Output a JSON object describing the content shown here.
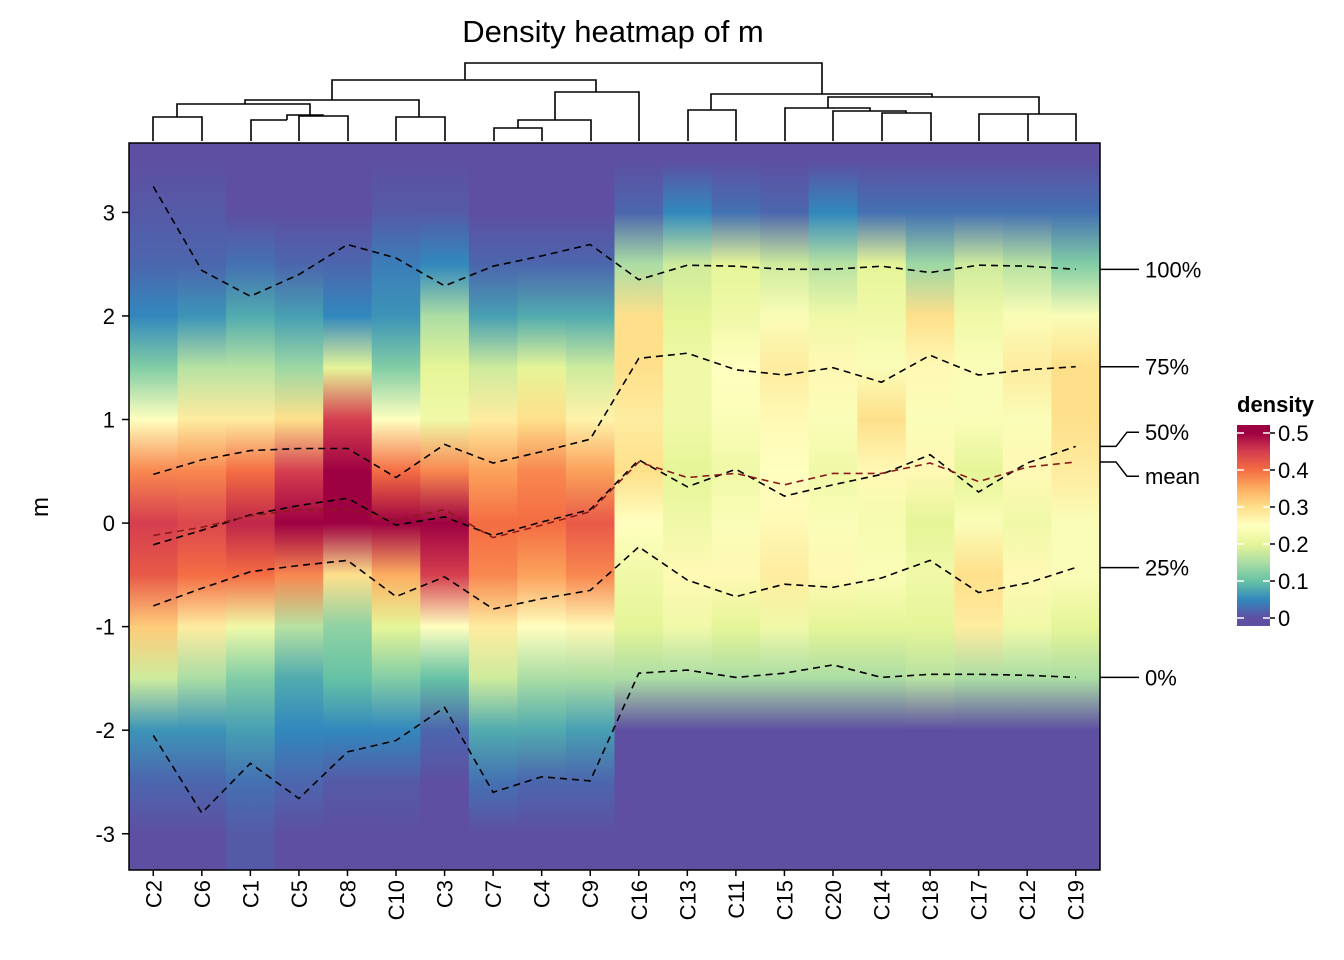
{
  "chart_data": {
    "type": "heatmap",
    "title": "Density heatmap of m",
    "ylabel": "m",
    "categories": [
      "C2",
      "C6",
      "C1",
      "C5",
      "C8",
      "C10",
      "C3",
      "C7",
      "C4",
      "C9",
      "C16",
      "C13",
      "C11",
      "C15",
      "C20",
      "C14",
      "C18",
      "C17",
      "C12",
      "C19"
    ],
    "ylim": [
      -3.35,
      3.67
    ],
    "yticks": [
      -3,
      -2,
      -1,
      0,
      1,
      2,
      3
    ],
    "density": {
      "levels": [
        -3,
        -2.5,
        -2,
        -1.5,
        -1,
        -0.5,
        0,
        0.5,
        1,
        1.5,
        2,
        2.5,
        3,
        3.5
      ],
      "values": [
        [
          0,
          0.02,
          0.06,
          0.18,
          0.32,
          0.42,
          0.45,
          0.38,
          0.25,
          0.12,
          0.05,
          0.02,
          0.01,
          0
        ],
        [
          0,
          0.02,
          0.06,
          0.15,
          0.28,
          0.4,
          0.44,
          0.38,
          0.28,
          0.16,
          0.06,
          0.02,
          0.01,
          0
        ],
        [
          0.01,
          0.03,
          0.07,
          0.12,
          0.22,
          0.4,
          0.47,
          0.4,
          0.28,
          0.16,
          0.08,
          0.03,
          0,
          0
        ],
        [
          0,
          0.02,
          0.05,
          0.08,
          0.16,
          0.38,
          0.5,
          0.45,
          0.3,
          0.14,
          0.07,
          0.02,
          0,
          0
        ],
        [
          0,
          0.01,
          0.05,
          0.1,
          0.13,
          0.3,
          0.5,
          0.52,
          0.45,
          0.2,
          0.05,
          0.02,
          0,
          0
        ],
        [
          0,
          0.01,
          0.05,
          0.12,
          0.2,
          0.35,
          0.52,
          0.4,
          0.25,
          0.12,
          0.06,
          0.04,
          0.01,
          0
        ],
        [
          0,
          0,
          0.02,
          0.1,
          0.25,
          0.45,
          0.52,
          0.38,
          0.22,
          0.2,
          0.15,
          0.05,
          0.01,
          0
        ],
        [
          0,
          0.03,
          0.08,
          0.18,
          0.28,
          0.38,
          0.4,
          0.36,
          0.28,
          0.18,
          0.07,
          0.02,
          0,
          0
        ],
        [
          0,
          0.02,
          0.08,
          0.15,
          0.25,
          0.36,
          0.4,
          0.38,
          0.3,
          0.2,
          0.08,
          0.02,
          0,
          0
        ],
        [
          0,
          0.02,
          0.07,
          0.15,
          0.26,
          0.38,
          0.42,
          0.36,
          0.27,
          0.18,
          0.08,
          0.02,
          0,
          0
        ],
        [
          0,
          0,
          0,
          0.15,
          0.2,
          0.22,
          0.25,
          0.3,
          0.28,
          0.3,
          0.3,
          0.15,
          0.02,
          0
        ],
        [
          0,
          0,
          0,
          0.15,
          0.22,
          0.26,
          0.22,
          0.2,
          0.22,
          0.22,
          0.2,
          0.18,
          0.05,
          0
        ],
        [
          0,
          0,
          0,
          0.15,
          0.2,
          0.26,
          0.24,
          0.22,
          0.24,
          0.25,
          0.22,
          0.2,
          0.03,
          0
        ],
        [
          0,
          0,
          0,
          0.15,
          0.22,
          0.28,
          0.26,
          0.25,
          0.26,
          0.28,
          0.24,
          0.18,
          0.02,
          0
        ],
        [
          0,
          0,
          0,
          0.15,
          0.2,
          0.26,
          0.24,
          0.22,
          0.24,
          0.26,
          0.22,
          0.16,
          0.05,
          0
        ],
        [
          0,
          0,
          0,
          0.15,
          0.2,
          0.24,
          0.23,
          0.26,
          0.3,
          0.24,
          0.22,
          0.2,
          0.03,
          0
        ],
        [
          0,
          0,
          0,
          0.16,
          0.2,
          0.22,
          0.2,
          0.26,
          0.24,
          0.26,
          0.3,
          0.14,
          0.03,
          0
        ],
        [
          0,
          0,
          0,
          0.15,
          0.28,
          0.3,
          0.24,
          0.2,
          0.24,
          0.24,
          0.22,
          0.18,
          0.03,
          0
        ],
        [
          0,
          0,
          0,
          0.15,
          0.22,
          0.26,
          0.22,
          0.26,
          0.24,
          0.28,
          0.24,
          0.16,
          0.03,
          0
        ],
        [
          0,
          0,
          0,
          0.15,
          0.2,
          0.24,
          0.24,
          0.28,
          0.3,
          0.3,
          0.24,
          0.12,
          0.03,
          0
        ]
      ]
    },
    "colorbar": {
      "title": "density",
      "clim": [
        0,
        0.5
      ],
      "ticks": [
        0,
        0.1,
        0.2,
        0.3,
        0.4,
        0.5
      ],
      "colors": [
        "#5e4fa2",
        "#3288bd",
        "#66c2a5",
        "#abdda4",
        "#e6f598",
        "#ffffbf",
        "#fee08b",
        "#fdae61",
        "#f46d43",
        "#d53e4f",
        "#9e0142"
      ]
    },
    "series": [
      {
        "name": "100%",
        "color": "#000000",
        "values": [
          3.25,
          2.44,
          2.19,
          2.4,
          2.69,
          2.56,
          2.29,
          2.48,
          2.58,
          2.69,
          2.35,
          2.49,
          2.48,
          2.45,
          2.45,
          2.48,
          2.42,
          2.49,
          2.48,
          2.45
        ]
      },
      {
        "name": "75%",
        "color": "#000000",
        "values": [
          0.47,
          0.61,
          0.7,
          0.72,
          0.72,
          0.44,
          0.76,
          0.58,
          0.69,
          0.81,
          1.59,
          1.64,
          1.48,
          1.43,
          1.5,
          1.36,
          1.62,
          1.43,
          1.48,
          1.51
        ]
      },
      {
        "name": "50%",
        "color": "#000000",
        "values": [
          -0.21,
          -0.07,
          0.08,
          0.17,
          0.24,
          -0.02,
          0.06,
          -0.12,
          0.01,
          0.13,
          0.61,
          0.35,
          0.52,
          0.26,
          0.37,
          0.47,
          0.66,
          0.3,
          0.58,
          0.74
        ]
      },
      {
        "name": "mean",
        "color": "#8b1a1a",
        "values": [
          -0.12,
          -0.04,
          0.07,
          0.13,
          0.13,
          0.03,
          0.13,
          -0.14,
          -0.02,
          0.11,
          0.59,
          0.44,
          0.48,
          0.37,
          0.48,
          0.48,
          0.58,
          0.4,
          0.54,
          0.59
        ]
      },
      {
        "name": "25%",
        "color": "#000000",
        "values": [
          -0.8,
          -0.63,
          -0.47,
          -0.41,
          -0.36,
          -0.71,
          -0.52,
          -0.83,
          -0.73,
          -0.65,
          -0.23,
          -0.55,
          -0.71,
          -0.59,
          -0.62,
          -0.53,
          -0.36,
          -0.67,
          -0.58,
          -0.43
        ]
      },
      {
        "name": "0%",
        "color": "#000000",
        "values": [
          -2.05,
          -2.8,
          -2.32,
          -2.66,
          -2.21,
          -2.1,
          -1.78,
          -2.6,
          -2.45,
          -2.49,
          -1.45,
          -1.42,
          -1.49,
          -1.45,
          -1.37,
          -1.49,
          -1.46,
          -1.46,
          -1.47,
          -1.49
        ]
      }
    ]
  }
}
